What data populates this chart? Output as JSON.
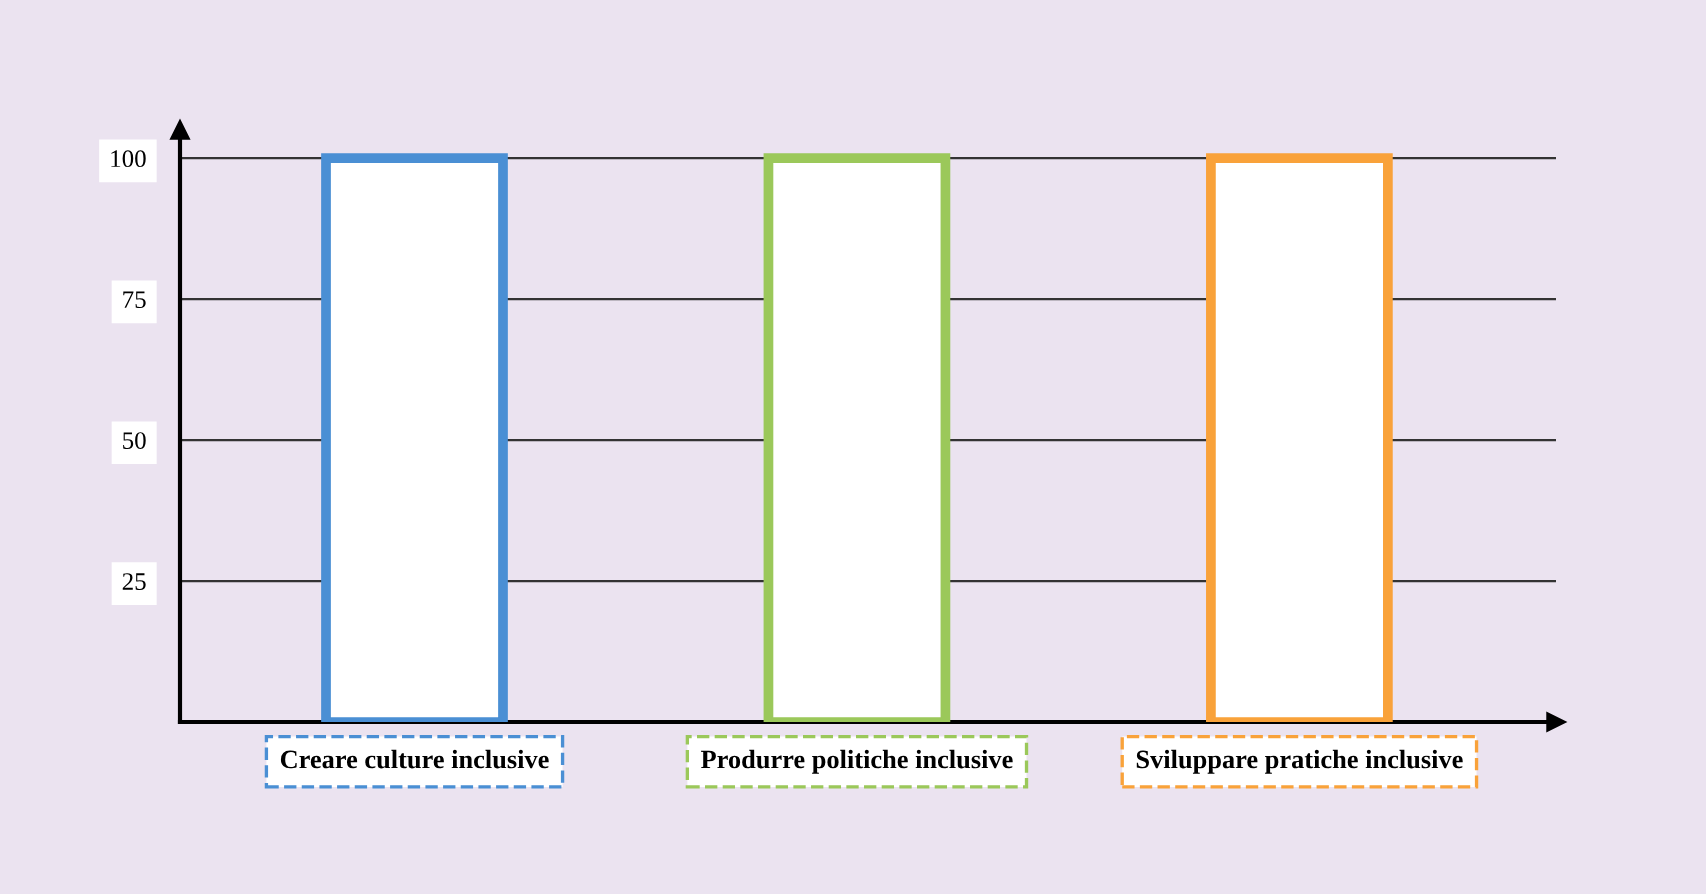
{
  "chart_data": {
    "type": "bar",
    "categories": [
      "Creare culture inclusive",
      "Produrre politiche inclusive",
      "Sviluppare pratiche inclusive"
    ],
    "values": [
      100,
      100,
      100
    ],
    "colors": [
      "#4a8fd4",
      "#9bc85a",
      "#f9a23a"
    ],
    "ylim": [
      0,
      105
    ],
    "yticks": [
      25,
      50,
      75,
      100
    ],
    "grid": "y",
    "legend": false
  }
}
